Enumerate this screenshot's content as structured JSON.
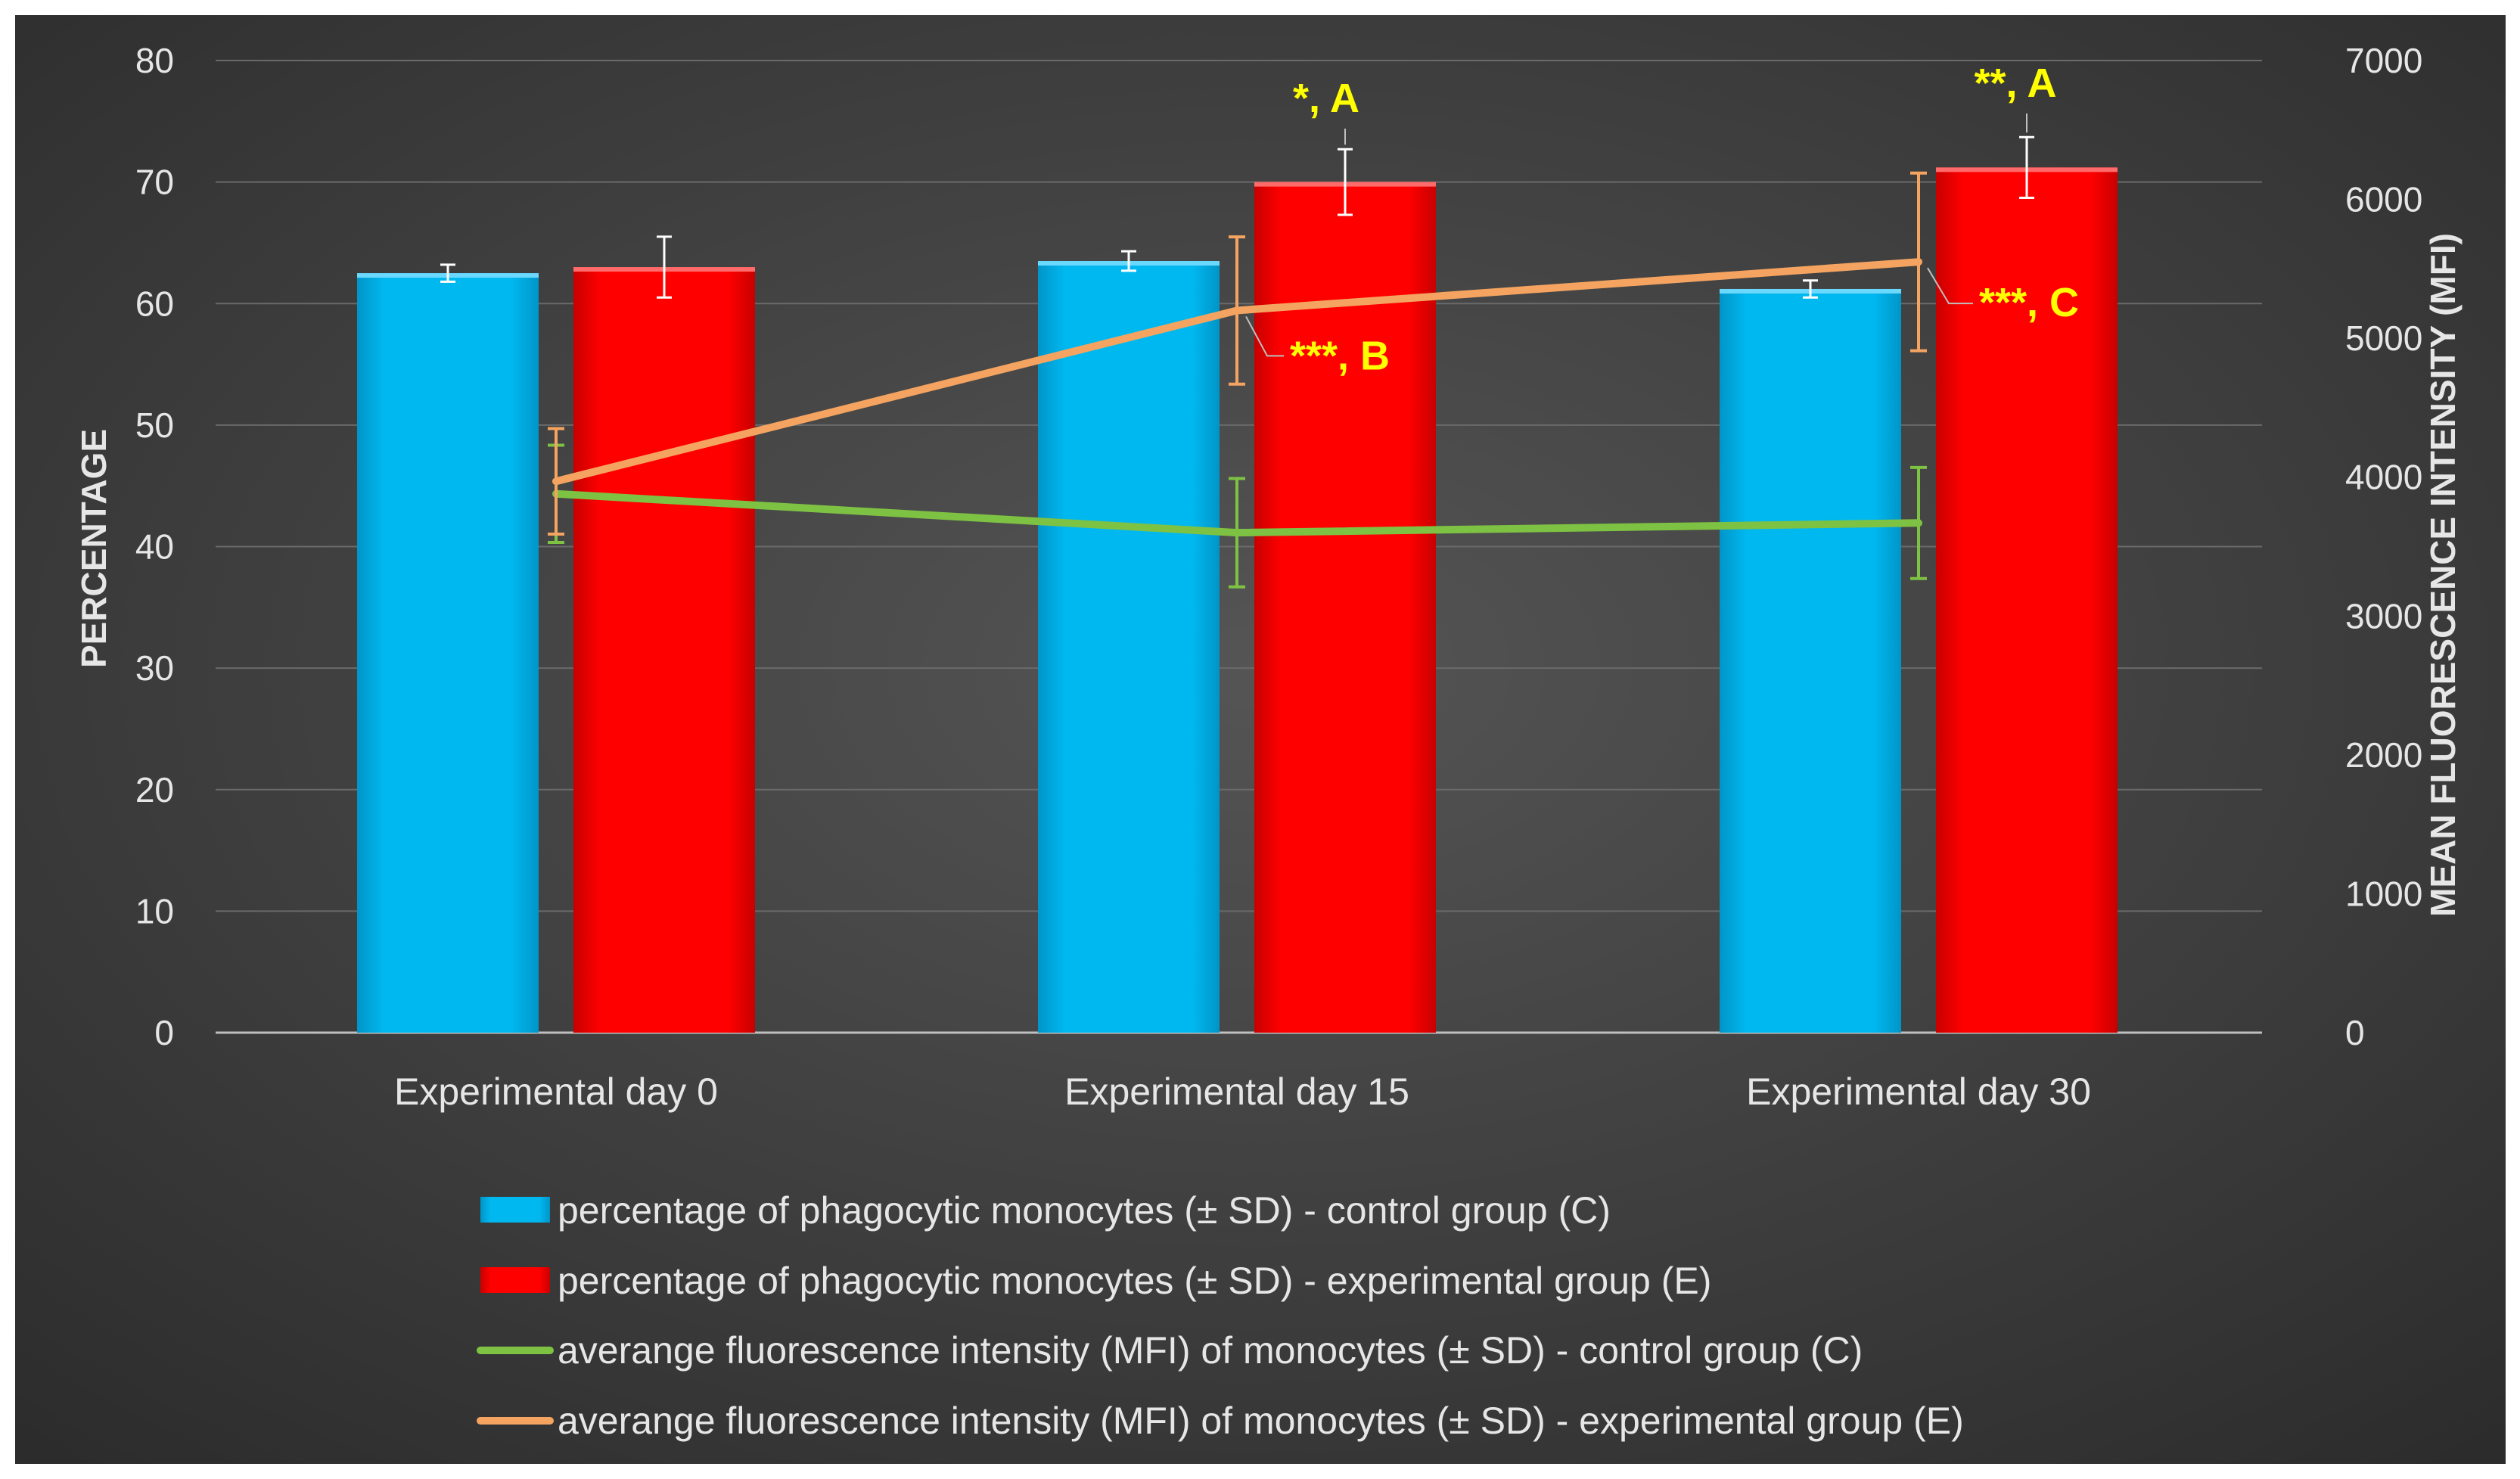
{
  "chart_data": {
    "type": "bar+line",
    "categories": [
      "Experimental day 0",
      "Experimental day 15",
      "Experimental day 30"
    ],
    "left_axis": {
      "label": "PERCENTAGE",
      "range": [
        0,
        80
      ],
      "ticks": [
        0,
        10,
        20,
        30,
        40,
        50,
        60,
        70,
        80
      ]
    },
    "right_axis": {
      "label": "MEAN FLUORESCENCE INTENSITY (MFI)",
      "range": [
        0,
        7000
      ],
      "ticks": [
        0,
        1000,
        2000,
        3000,
        4000,
        5000,
        6000,
        7000
      ]
    },
    "bar_series": [
      {
        "name": "percentage of phagocytic monocytes (± SD) - control group (C)",
        "color": "#00b8f0",
        "values": [
          62.5,
          63.5,
          61.2
        ],
        "sd": [
          0.7,
          0.8,
          0.7
        ]
      },
      {
        "name": "percentage of phagocytic monocytes (± SD) - experimental group (E)",
        "color": "#ff0000",
        "values": [
          63.0,
          70.0,
          71.2
        ],
        "sd": [
          2.5,
          2.7,
          2.5
        ]
      }
    ],
    "line_series": [
      {
        "name": "averange fluorescence intensity (MFI) of monocytes (± SD) - control group (C)",
        "color": "#7ec243",
        "values": [
          3880,
          3600,
          3670
        ],
        "sd": [
          350,
          390,
          400
        ]
      },
      {
        "name": "averange fluorescence intensity (MFI) of monocytes (± SD) - experimental group (E)",
        "color": "#f4a460",
        "values": [
          3970,
          5200,
          5550
        ],
        "sd": [
          380,
          530,
          640
        ]
      }
    ],
    "annotations": [
      {
        "text": "*, A",
        "category": 1,
        "series": "experimental group (E) percentage"
      },
      {
        "text": "**, A",
        "category": 2,
        "series": "experimental group (E) percentage"
      },
      {
        "text": "***, B",
        "category": 1,
        "series": "experimental group (E) MFI"
      },
      {
        "text": "***, C",
        "category": 2,
        "series": "experimental group (E) MFI"
      }
    ],
    "grid": true,
    "legend_position": "bottom"
  }
}
